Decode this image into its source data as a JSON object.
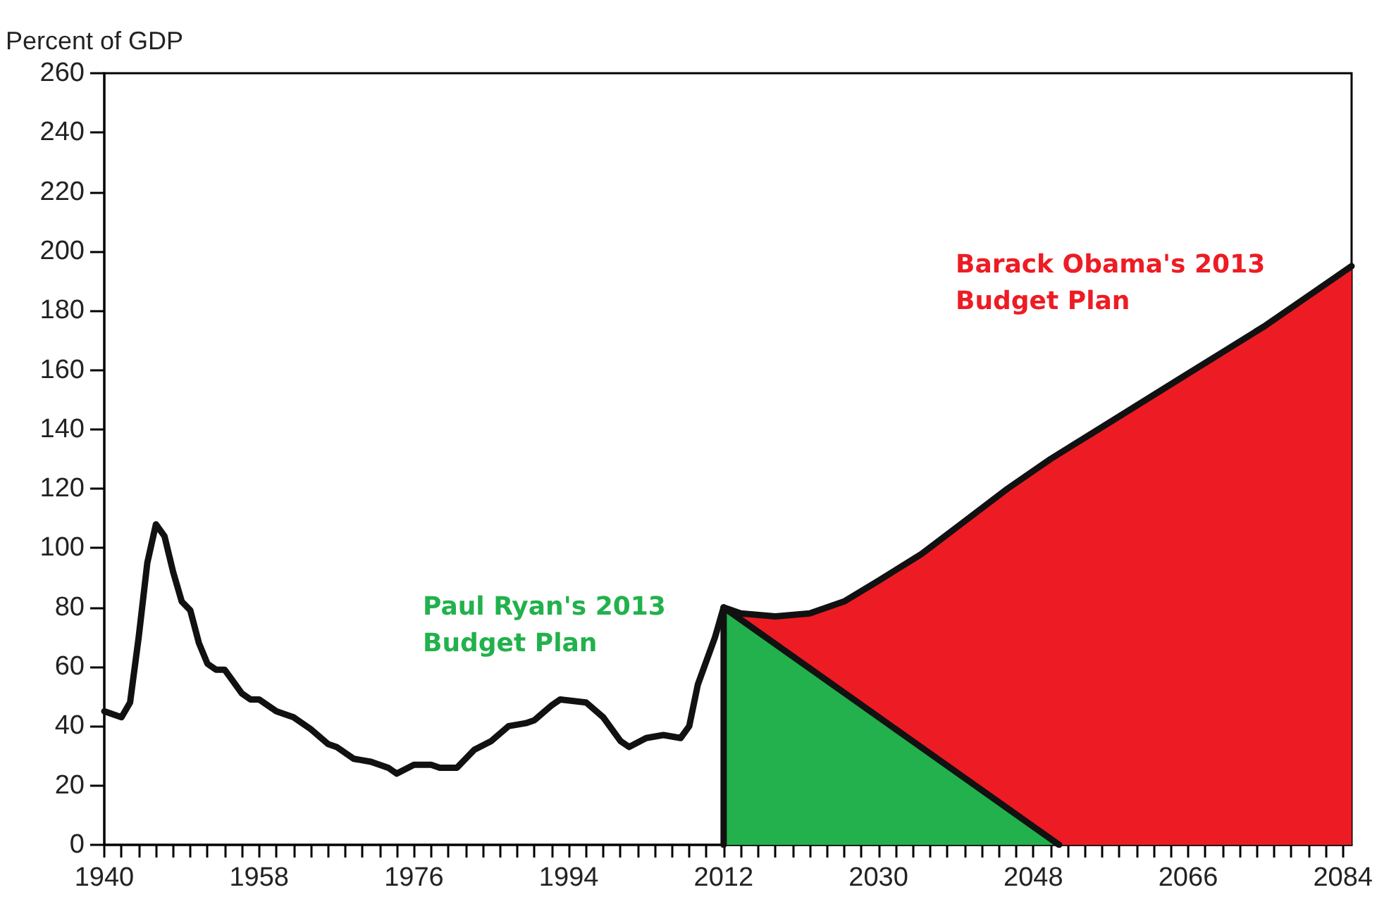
{
  "chart_data": {
    "type": "line",
    "ylabel": "Percent of GDP",
    "xlim": [
      1940,
      2085
    ],
    "ylim": [
      0,
      260
    ],
    "yticks": [
      0,
      20,
      40,
      60,
      80,
      100,
      120,
      140,
      160,
      180,
      200,
      220,
      240,
      260
    ],
    "xticks": [
      1940,
      {
        "value": 1942,
        "label": null
      },
      {
        "value": 1944,
        "label": null
      },
      {
        "value": 1946,
        "label": null
      },
      {
        "value": 1948,
        "label": null
      },
      {
        "value": 1950,
        "label": null
      },
      {
        "value": 1952,
        "label": null
      },
      {
        "value": 1954,
        "label": null
      },
      {
        "value": 1956,
        "label": null
      },
      1958,
      {
        "value": 1960,
        "label": null
      },
      {
        "value": 1962,
        "label": null
      },
      {
        "value": 1964,
        "label": null
      },
      {
        "value": 1966,
        "label": null
      },
      {
        "value": 1968,
        "label": null
      },
      {
        "value": 1970,
        "label": null
      },
      {
        "value": 1972,
        "label": null
      },
      {
        "value": 1974,
        "label": null
      },
      1976,
      {
        "value": 1978,
        "label": null
      },
      {
        "value": 1980,
        "label": null
      },
      {
        "value": 1982,
        "label": null
      },
      {
        "value": 1984,
        "label": null
      },
      {
        "value": 1986,
        "label": null
      },
      {
        "value": 1988,
        "label": null
      },
      {
        "value": 1990,
        "label": null
      },
      {
        "value": 1992,
        "label": null
      },
      1994,
      {
        "value": 1996,
        "label": null
      },
      {
        "value": 1998,
        "label": null
      },
      {
        "value": 2000,
        "label": null
      },
      {
        "value": 2002,
        "label": null
      },
      {
        "value": 2004,
        "label": null
      },
      {
        "value": 2006,
        "label": null
      },
      {
        "value": 2008,
        "label": null
      },
      {
        "value": 2010,
        "label": null
      },
      2012,
      {
        "value": 2014,
        "label": null
      },
      {
        "value": 2016,
        "label": null
      },
      {
        "value": 2018,
        "label": null
      },
      {
        "value": 2020,
        "label": null
      },
      {
        "value": 2022,
        "label": null
      },
      {
        "value": 2024,
        "label": null
      },
      {
        "value": 2026,
        "label": null
      },
      {
        "value": 2028,
        "label": null
      },
      2030,
      {
        "value": 2032,
        "label": null
      },
      {
        "value": 2034,
        "label": null
      },
      {
        "value": 2036,
        "label": null
      },
      {
        "value": 2038,
        "label": null
      },
      {
        "value": 2040,
        "label": null
      },
      {
        "value": 2042,
        "label": null
      },
      {
        "value": 2044,
        "label": null
      },
      {
        "value": 2046,
        "label": null
      },
      2048,
      {
        "value": 2050,
        "label": null
      },
      {
        "value": 2052,
        "label": null
      },
      {
        "value": 2054,
        "label": null
      },
      {
        "value": 2056,
        "label": null
      },
      {
        "value": 2058,
        "label": null
      },
      {
        "value": 2060,
        "label": null
      },
      {
        "value": 2062,
        "label": null
      },
      {
        "value": 2064,
        "label": null
      },
      2066,
      {
        "value": 2068,
        "label": null
      },
      {
        "value": 2070,
        "label": null
      },
      {
        "value": 2072,
        "label": null
      },
      {
        "value": 2074,
        "label": null
      },
      {
        "value": 2076,
        "label": null
      },
      {
        "value": 2078,
        "label": null
      },
      {
        "value": 2080,
        "label": null
      },
      {
        "value": 2082,
        "label": null
      },
      2084
    ],
    "grid": false,
    "legend": false,
    "series": [
      {
        "name": "Barack Obama's 2013 Budget Plan",
        "type": "area",
        "color": "#ed1c24",
        "x": [
          2012,
          2014,
          2018,
          2022,
          2026,
          2030,
          2035,
          2040,
          2045,
          2050,
          2055,
          2060,
          2065,
          2070,
          2075,
          2080,
          2085
        ],
        "values": [
          80,
          78,
          77,
          78,
          82,
          89,
          98,
          109,
          120,
          130,
          139,
          148,
          157,
          166,
          175,
          185,
          195
        ]
      },
      {
        "name": "Paul Ryan's 2013 Budget Plan",
        "type": "area",
        "color": "#22b14c",
        "x": [
          2012,
          2012,
          2051
        ],
        "values": [
          0,
          80,
          0
        ]
      },
      {
        "color": "#111111",
        "x": [
          1940,
          1942,
          1943,
          1944,
          1945,
          1946,
          1947,
          1948,
          1949,
          1950,
          1951,
          1952,
          1953,
          1954,
          1955,
          1956,
          1957,
          1958,
          1960,
          1962,
          1964,
          1966,
          1967,
          1969,
          1971,
          1973,
          1974,
          1976,
          1978,
          1979,
          1981,
          1983,
          1985,
          1987,
          1989,
          1990,
          1992,
          1993,
          1996,
          1998,
          2000,
          2001,
          2003,
          2005,
          2007,
          2008,
          2009,
          2010,
          2011,
          2012
        ],
        "values": [
          45,
          43,
          48,
          70,
          95,
          108,
          104,
          92,
          82,
          79,
          68,
          61,
          59,
          59,
          55,
          51,
          49,
          49,
          45,
          43,
          39,
          34,
          33,
          29,
          28,
          26,
          24,
          27,
          27,
          26,
          26,
          32,
          35,
          40,
          41,
          42,
          47,
          49,
          48,
          43,
          35,
          33,
          36,
          37,
          36,
          40,
          54,
          62,
          70,
          80
        ]
      }
    ]
  }
}
